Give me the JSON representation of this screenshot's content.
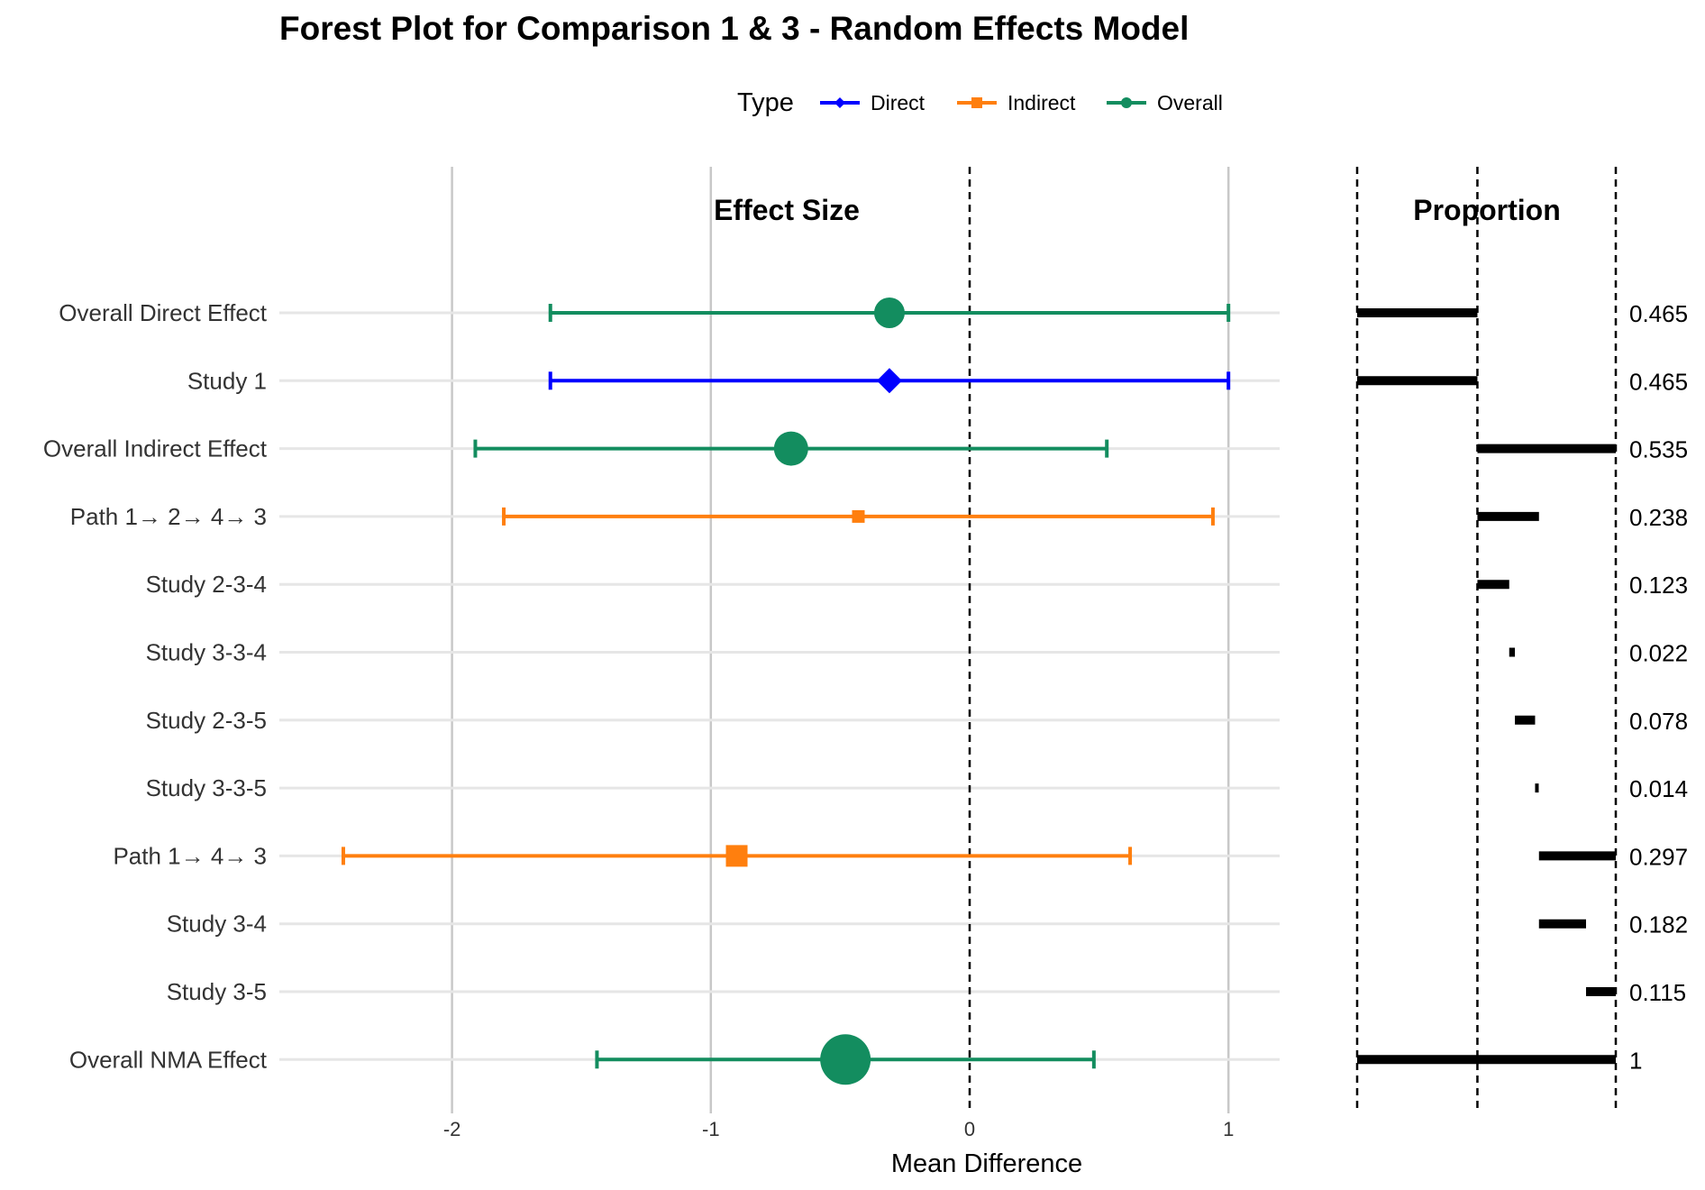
{
  "chart_data": {
    "type": "forest",
    "title": "Forest Plot for Comparison 1 & 3 - Random Effects Model",
    "left_panel_title": "Effect Size",
    "right_panel_title": "Proportion",
    "xlabel": "Mean Difference",
    "xlim": [
      -2.7,
      1.2
    ],
    "x_ticks": [
      -2,
      -1,
      0,
      1
    ],
    "x_tick_labels": [
      "-2",
      "-1",
      "0",
      "1"
    ],
    "reference_line": 0,
    "legend": {
      "title": "Type",
      "position": "top",
      "entries": [
        {
          "label": "Direct",
          "color": "#0000FF",
          "shape": "diamond"
        },
        {
          "label": "Indirect",
          "color": "#FF7F0E",
          "shape": "square"
        },
        {
          "label": "Overall",
          "color": "#138D5F",
          "shape": "circle"
        }
      ]
    },
    "rows": [
      {
        "label": "Overall Direct Effect",
        "type": "Overall",
        "estimate": -0.31,
        "lower": -1.62,
        "upper": 1.0,
        "proportion_label": "0.465",
        "prop_start": 0.0,
        "prop_end": 0.465,
        "marker_size": 34
      },
      {
        "label": "Study 1",
        "type": "Direct",
        "estimate": -0.31,
        "lower": -1.62,
        "upper": 1.0,
        "proportion_label": "0.465",
        "prop_start": 0.0,
        "prop_end": 0.465,
        "marker_size": 28
      },
      {
        "label": "Overall Indirect Effect",
        "type": "Overall",
        "estimate": -0.69,
        "lower": -1.91,
        "upper": 0.53,
        "proportion_label": "0.535",
        "prop_start": 0.465,
        "prop_end": 1.0,
        "marker_size": 38
      },
      {
        "label": "Path 1→ 2→ 4→ 3",
        "type": "Indirect",
        "estimate": -0.43,
        "lower": -1.8,
        "upper": 0.94,
        "proportion_label": "0.238",
        "prop_start": 0.465,
        "prop_end": 0.703,
        "marker_size": 14
      },
      {
        "label": "Study 2-3-4",
        "type": null,
        "estimate": null,
        "lower": null,
        "upper": null,
        "proportion_label": "0.123",
        "prop_start": 0.465,
        "prop_end": 0.588,
        "marker_size": 0
      },
      {
        "label": "Study 3-3-4",
        "type": null,
        "estimate": null,
        "lower": null,
        "upper": null,
        "proportion_label": "0.022",
        "prop_start": 0.588,
        "prop_end": 0.61,
        "marker_size": 0
      },
      {
        "label": "Study 2-3-5",
        "type": null,
        "estimate": null,
        "lower": null,
        "upper": null,
        "proportion_label": "0.078",
        "prop_start": 0.61,
        "prop_end": 0.688,
        "marker_size": 0
      },
      {
        "label": "Study 3-3-5",
        "type": null,
        "estimate": null,
        "lower": null,
        "upper": null,
        "proportion_label": "0.014",
        "prop_start": 0.688,
        "prop_end": 0.702,
        "marker_size": 0
      },
      {
        "label": "Path 1→ 4→ 3",
        "type": "Indirect",
        "estimate": -0.9,
        "lower": -2.42,
        "upper": 0.62,
        "proportion_label": "0.297",
        "prop_start": 0.703,
        "prop_end": 1.0,
        "marker_size": 24
      },
      {
        "label": "Study 3-4",
        "type": null,
        "estimate": null,
        "lower": null,
        "upper": null,
        "proportion_label": "0.182",
        "prop_start": 0.703,
        "prop_end": 0.885,
        "marker_size": 0
      },
      {
        "label": "Study 3-5",
        "type": null,
        "estimate": null,
        "lower": null,
        "upper": null,
        "proportion_label": "0.115",
        "prop_start": 0.885,
        "prop_end": 1.0,
        "marker_size": 0
      },
      {
        "label": "Overall NMA Effect",
        "type": "Overall",
        "estimate": -0.48,
        "lower": -1.44,
        "upper": 0.48,
        "proportion_label": "1",
        "prop_start": 0.0,
        "prop_end": 1.0,
        "marker_size": 56
      }
    ],
    "proportion_reference_lines": [
      0,
      0.465,
      1.0
    ],
    "grid": true
  }
}
